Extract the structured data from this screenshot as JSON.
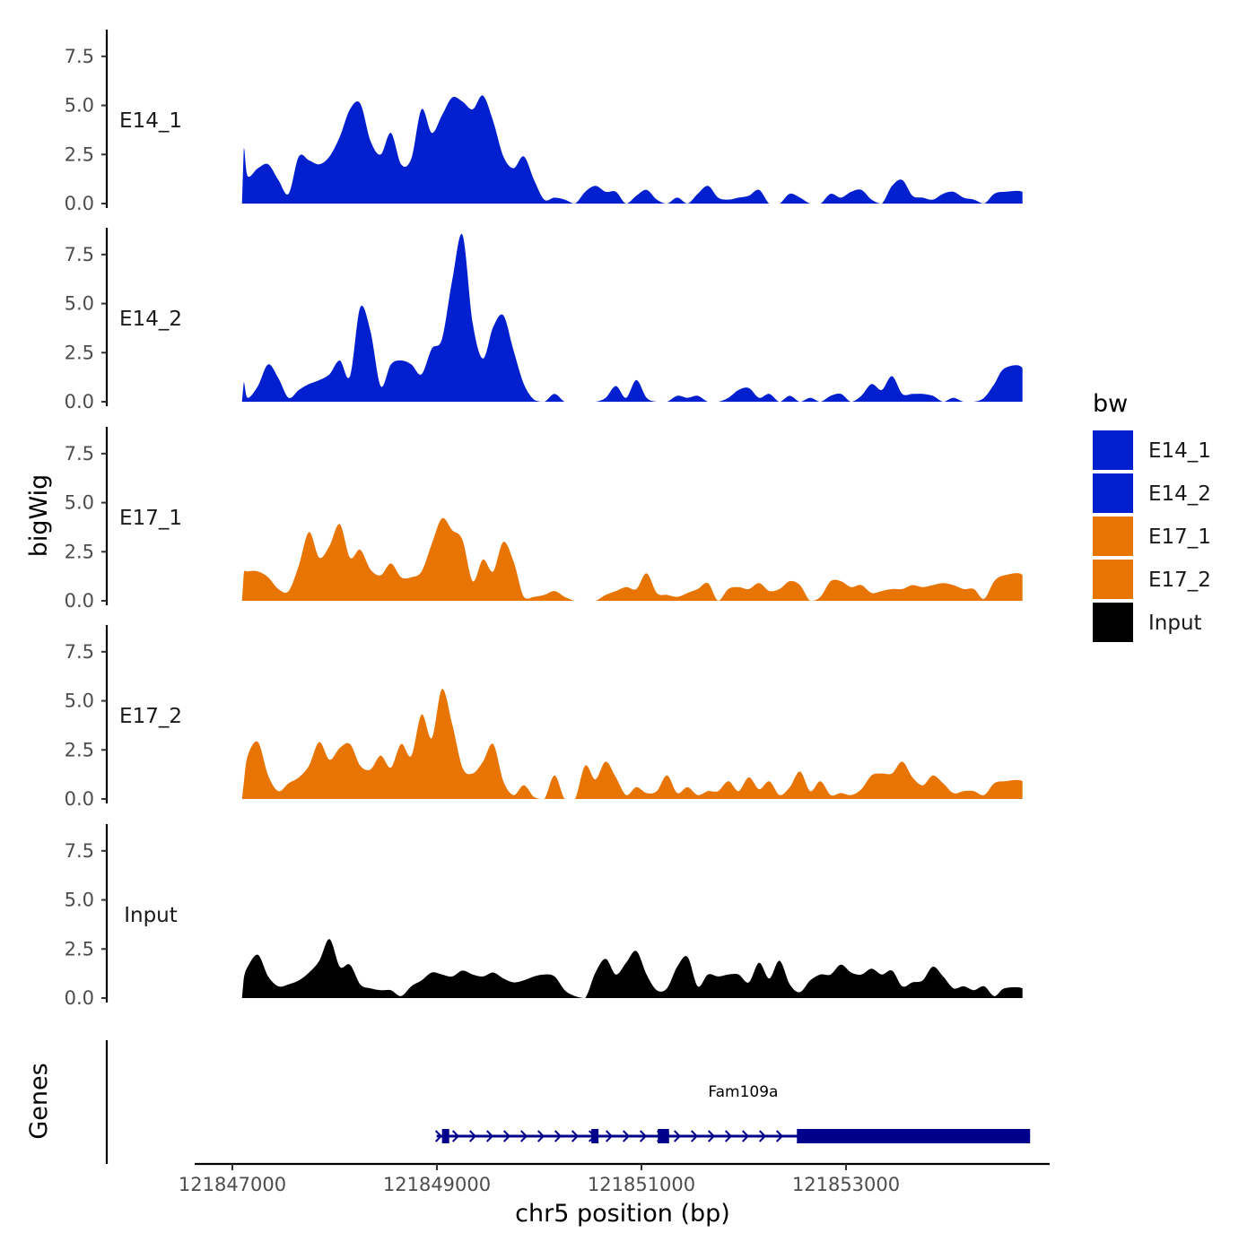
{
  "chart_data": {
    "type": "area",
    "subtype": "genome-coverage-tracks",
    "ylabel": "bigWig",
    "xlabel": "chr5 position (bp)",
    "genes_label": "Genes",
    "x_ticks": [
      121847000,
      121849000,
      121851000,
      121853000
    ],
    "x_tick_labels": [
      "121847000",
      "121849000",
      "121851000",
      "121853000"
    ],
    "xlim": [
      121846630,
      121855000
    ],
    "y_ticks": [
      0,
      2.5,
      5,
      7.5
    ],
    "y_tick_labels": [
      "0.0",
      "2.5",
      "5.0",
      "7.5"
    ],
    "ylim": [
      0,
      9
    ],
    "x": [
      121847050,
      121847150,
      121847250,
      121847350,
      121847450,
      121847550,
      121847650,
      121847750,
      121847850,
      121847950,
      121848050,
      121848150,
      121848250,
      121848350,
      121848450,
      121848550,
      121848650,
      121848750,
      121848850,
      121848950,
      121849050,
      121849150,
      121849250,
      121849350,
      121849450,
      121849550,
      121849650,
      121849750,
      121849850,
      121849950,
      121850050,
      121850150,
      121850250,
      121850350,
      121850450,
      121850550,
      121850650,
      121850750,
      121850850,
      121850950,
      121851050,
      121851150,
      121851250,
      121851350,
      121851450,
      121851550,
      121851650,
      121851750,
      121851850,
      121851950,
      121852050,
      121852150,
      121852250,
      121852350,
      121852450,
      121852550,
      121852650,
      121852750,
      121852850,
      121852950,
      121853050,
      121853150,
      121853250,
      121853350,
      121853450,
      121853550,
      121853650,
      121853750,
      121853850,
      121853950,
      121854050,
      121854150,
      121854250,
      121854350,
      121854450,
      121854550
    ],
    "series": [
      {
        "name": "E14_1",
        "color": "#0020cf",
        "values": [
          2.8,
          1.4,
          1.8,
          2.0,
          1.2,
          0.5,
          2.4,
          2.2,
          2.0,
          2.4,
          3.4,
          4.8,
          5.1,
          3.2,
          2.5,
          3.6,
          2.0,
          2.3,
          4.8,
          3.6,
          4.5,
          5.4,
          5.2,
          4.8,
          5.5,
          4.2,
          2.4,
          1.8,
          2.4,
          1.2,
          0.2,
          0.3,
          0.2,
          0.0,
          0.6,
          0.9,
          0.6,
          0.6,
          0.0,
          0.4,
          0.7,
          0.2,
          0.0,
          0.3,
          0.0,
          0.5,
          0.9,
          0.3,
          0.2,
          0.3,
          0.4,
          0.7,
          0.0,
          0.0,
          0.5,
          0.3,
          0.0,
          0.0,
          0.5,
          0.3,
          0.6,
          0.7,
          0.2,
          0.0,
          0.9,
          1.2,
          0.4,
          0.3,
          0.2,
          0.5,
          0.6,
          0.3,
          0.2,
          0.0,
          0.5,
          0.6
        ]
      },
      {
        "name": "E14_2",
        "color": "#0020cf",
        "values": [
          1.0,
          0.2,
          0.8,
          1.9,
          1.2,
          0.2,
          0.6,
          0.9,
          1.1,
          1.4,
          2.1,
          1.3,
          4.8,
          3.6,
          0.8,
          1.9,
          2.1,
          1.9,
          1.4,
          2.7,
          3.2,
          6.2,
          8.5,
          4.0,
          2.2,
          3.8,
          4.4,
          2.6,
          0.9,
          0.1,
          0.0,
          0.4,
          0.0,
          0.0,
          0.0,
          0.0,
          0.2,
          0.8,
          0.2,
          1.1,
          0.2,
          0.0,
          0.0,
          0.3,
          0.2,
          0.3,
          0.0,
          0.0,
          0.2,
          0.6,
          0.7,
          0.2,
          0.4,
          0.0,
          0.3,
          0.0,
          0.2,
          0.0,
          0.3,
          0.4,
          0.0,
          0.3,
          0.9,
          0.6,
          1.3,
          0.4,
          0.4,
          0.4,
          0.3,
          0.0,
          0.2,
          0.0,
          0.0,
          0.2,
          0.9,
          1.7
        ]
      },
      {
        "name": "E17_1",
        "color": "#e87503",
        "values": [
          1.4,
          1.5,
          1.5,
          1.2,
          0.6,
          0.5,
          1.8,
          3.5,
          2.2,
          2.8,
          3.9,
          2.2,
          2.6,
          1.6,
          1.3,
          1.9,
          1.2,
          1.2,
          1.5,
          2.9,
          4.2,
          3.6,
          3.1,
          1.0,
          2.1,
          1.5,
          3.0,
          2.0,
          0.2,
          0.2,
          0.3,
          0.5,
          0.2,
          0.0,
          0.0,
          0.0,
          0.3,
          0.5,
          0.7,
          0.6,
          1.4,
          0.4,
          0.3,
          0.2,
          0.4,
          0.6,
          0.9,
          0.0,
          0.6,
          0.7,
          0.6,
          0.9,
          0.5,
          0.6,
          1.0,
          0.8,
          0.0,
          0.2,
          1.0,
          1.0,
          0.7,
          0.8,
          0.4,
          0.5,
          0.6,
          0.6,
          0.8,
          0.7,
          0.8,
          0.9,
          0.8,
          0.6,
          0.6,
          0.1,
          1.0,
          1.3
        ]
      },
      {
        "name": "E17_2",
        "color": "#e87503",
        "values": [
          0.8,
          2.2,
          2.9,
          1.2,
          0.4,
          0.8,
          1.1,
          1.7,
          2.9,
          2.0,
          2.6,
          2.8,
          1.7,
          1.5,
          2.2,
          1.6,
          2.8,
          2.2,
          4.3,
          3.1,
          5.6,
          3.8,
          1.6,
          1.3,
          1.9,
          2.8,
          0.9,
          0.2,
          0.7,
          0.1,
          0.0,
          1.2,
          0.0,
          0.0,
          1.7,
          1.0,
          1.9,
          1.1,
          0.2,
          0.6,
          0.3,
          0.4,
          1.2,
          0.3,
          0.6,
          0.2,
          0.4,
          0.4,
          0.9,
          0.4,
          1.1,
          0.5,
          0.9,
          0.2,
          0.6,
          1.4,
          0.4,
          0.9,
          0.2,
          0.3,
          0.2,
          0.5,
          1.2,
          1.3,
          1.3,
          1.9,
          1.1,
          0.7,
          1.2,
          0.8,
          0.3,
          0.4,
          0.4,
          0.2,
          0.8,
          0.9
        ]
      },
      {
        "name": "Input",
        "color": "#000000",
        "values": [
          1.0,
          1.6,
          2.2,
          1.1,
          0.6,
          0.7,
          0.9,
          1.3,
          1.9,
          3.0,
          1.6,
          1.7,
          0.7,
          0.5,
          0.4,
          0.4,
          0.1,
          0.6,
          0.9,
          1.3,
          1.2,
          1.1,
          1.4,
          1.2,
          1.1,
          1.3,
          1.0,
          0.8,
          0.9,
          1.1,
          1.2,
          1.1,
          0.4,
          0.1,
          0.0,
          1.3,
          2.0,
          1.2,
          1.8,
          2.4,
          1.2,
          0.4,
          0.5,
          1.6,
          2.1,
          0.6,
          1.2,
          1.1,
          1.2,
          1.2,
          0.8,
          1.8,
          1.0,
          1.9,
          0.7,
          0.3,
          0.9,
          1.2,
          1.2,
          1.7,
          1.3,
          1.2,
          1.5,
          1.2,
          1.4,
          0.6,
          0.8,
          0.9,
          1.6,
          1.1,
          0.5,
          0.6,
          0.4,
          0.6,
          0.1,
          0.5
        ]
      }
    ],
    "legend": {
      "title": "bw",
      "position": "right",
      "entries": [
        {
          "label": "E14_1",
          "color": "#0020cf"
        },
        {
          "label": "E14_2",
          "color": "#0020cf"
        },
        {
          "label": "E17_1",
          "color": "#e87503"
        },
        {
          "label": "E17_2",
          "color": "#e87503"
        },
        {
          "label": "Input",
          "color": "#000000"
        }
      ]
    },
    "gene": {
      "name": "Fam109a",
      "strand": "+",
      "start": 121849050,
      "end": 121854800,
      "color": "#00008b",
      "exons": [
        {
          "start": 121849050,
          "end": 121849120
        },
        {
          "start": 121850510,
          "end": 121850580
        },
        {
          "start": 121851160,
          "end": 121851270
        },
        {
          "start": 121852520,
          "end": 121854800
        }
      ]
    }
  }
}
